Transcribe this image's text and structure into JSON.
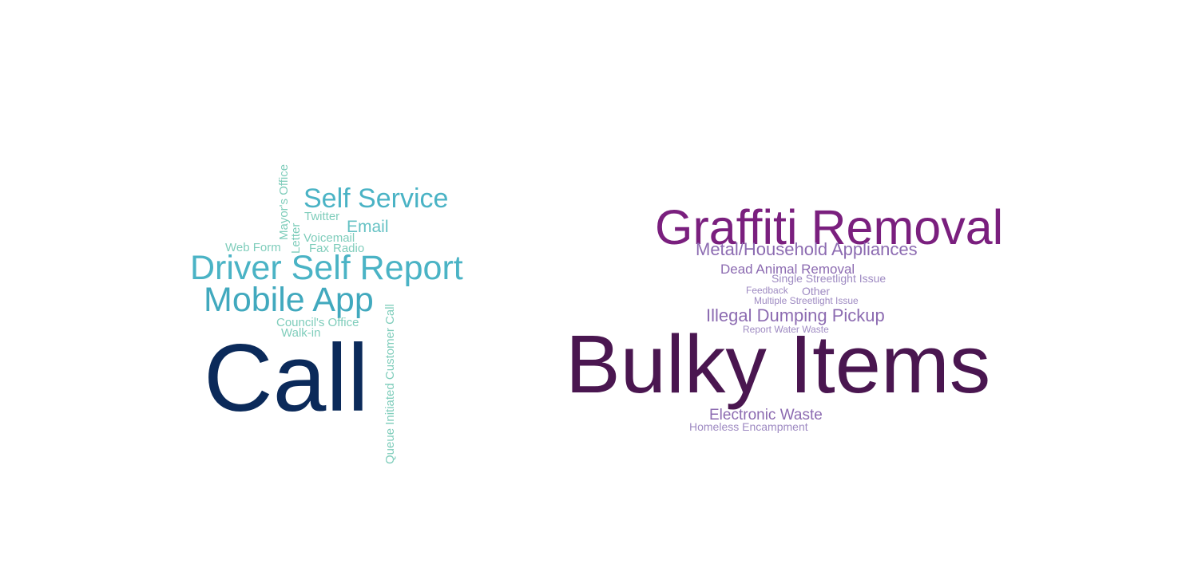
{
  "clouds": [
    {
      "words": [
        {
          "text": "Call",
          "color": "#0b2a5a"
        },
        {
          "text": "Mobile App",
          "color": "#41a9be"
        },
        {
          "text": "Driver Self Report",
          "color": "#4ab3c5"
        },
        {
          "text": "Self Service",
          "color": "#4ab3c5"
        },
        {
          "text": "Email",
          "color": "#66c2c4"
        },
        {
          "text": "Twitter",
          "color": "#7fcdbb"
        },
        {
          "text": "Voicemail",
          "color": "#7fcdbb"
        },
        {
          "text": "Web Form",
          "color": "#7fcdbb"
        },
        {
          "text": "Fax",
          "color": "#7fcdbb"
        },
        {
          "text": "Radio",
          "color": "#7fcdbb"
        },
        {
          "text": "Council's Office",
          "color": "#7fcdbb"
        },
        {
          "text": "Walk-in",
          "color": "#7fcdbb"
        },
        {
          "text": "Mayor's Office",
          "color": "#7fcdbb"
        },
        {
          "text": "Letter",
          "color": "#7fcdbb"
        },
        {
          "text": "Queue Initiated Customer Call",
          "color": "#7fcdbb"
        }
      ]
    },
    {
      "words": [
        {
          "text": "Bulky Items",
          "color": "#4a1650"
        },
        {
          "text": "Graffiti Removal",
          "color": "#7a1f7e"
        },
        {
          "text": "Metal/Household Appliances",
          "color": "#8c6bb1"
        },
        {
          "text": "Illegal Dumping Pickup",
          "color": "#8c6bb1"
        },
        {
          "text": "Dead Animal Removal",
          "color": "#8c6bb1"
        },
        {
          "text": "Electronic Waste",
          "color": "#8c6bb1"
        },
        {
          "text": "Single Streetlight Issue",
          "color": "#9e8ac2"
        },
        {
          "text": "Feedback",
          "color": "#9e8ac2"
        },
        {
          "text": "Other",
          "color": "#9e8ac2"
        },
        {
          "text": "Multiple Streetlight Issue",
          "color": "#9e8ac2"
        },
        {
          "text": "Report Water Waste",
          "color": "#9e8ac2"
        },
        {
          "text": "Homeless Encampment",
          "color": "#9e8ac2"
        }
      ]
    }
  ]
}
